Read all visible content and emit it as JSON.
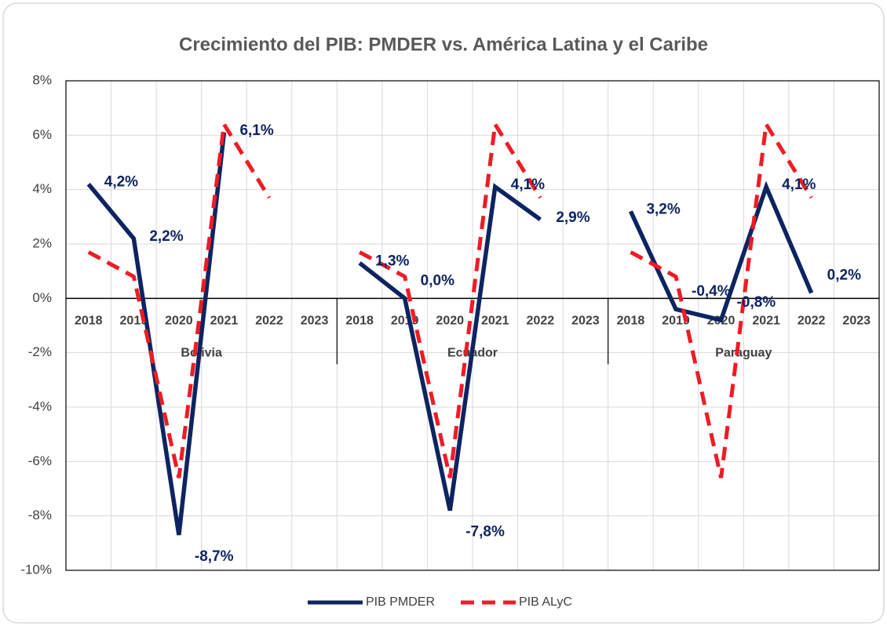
{
  "chart_data": {
    "type": "line",
    "title": "Crecimiento del PIB: PMDER vs. América Latina y el Caribe",
    "groups": [
      "Bolivia",
      "Ecuador",
      "Paraguay"
    ],
    "categories": [
      "2018",
      "2019",
      "2020",
      "2021",
      "2022",
      "2023",
      "2018",
      "2019",
      "2020",
      "2021",
      "2022",
      "2023",
      "2018",
      "2019",
      "2020",
      "2021",
      "2022",
      "2023"
    ],
    "series": [
      {
        "name": "PIB PMDER",
        "color": "#0d2461",
        "dashed": false,
        "values": [
          4.2,
          2.2,
          -8.7,
          6.1,
          null,
          null,
          1.3,
          0.0,
          -7.8,
          4.1,
          2.9,
          null,
          3.2,
          -0.4,
          -0.8,
          4.1,
          0.2,
          null
        ],
        "value_labels": [
          "4,2%",
          "2,2%",
          "-8,7%",
          "6,1%",
          null,
          null,
          "1,3%",
          "0,0%",
          "-7,8%",
          "4,1%",
          "2,9%",
          null,
          "3,2%",
          "-0,4%",
          "-0,8%",
          "4,1%",
          "0,2%",
          null
        ]
      },
      {
        "name": "PIB ALyC",
        "color": "#ee1c25",
        "dashed": true,
        "values": [
          1.7,
          0.8,
          -6.6,
          6.4,
          3.7,
          null,
          1.7,
          0.8,
          -6.6,
          6.4,
          3.7,
          null,
          1.7,
          0.8,
          -6.6,
          6.4,
          3.7,
          null
        ]
      }
    ],
    "ylim": [
      -10,
      8
    ],
    "yticks": [
      {
        "value": -10,
        "label": "-10%"
      },
      {
        "value": -8,
        "label": "-8%"
      },
      {
        "value": -6,
        "label": "-6%"
      },
      {
        "value": -4,
        "label": "-4%"
      },
      {
        "value": -2,
        "label": "-2%"
      },
      {
        "value": 0,
        "label": "0%"
      },
      {
        "value": 2,
        "label": "2%"
      },
      {
        "value": 4,
        "label": "4%"
      },
      {
        "value": 6,
        "label": "6%"
      },
      {
        "value": 8,
        "label": "8%"
      }
    ],
    "grid": true,
    "legend": "bottom"
  }
}
